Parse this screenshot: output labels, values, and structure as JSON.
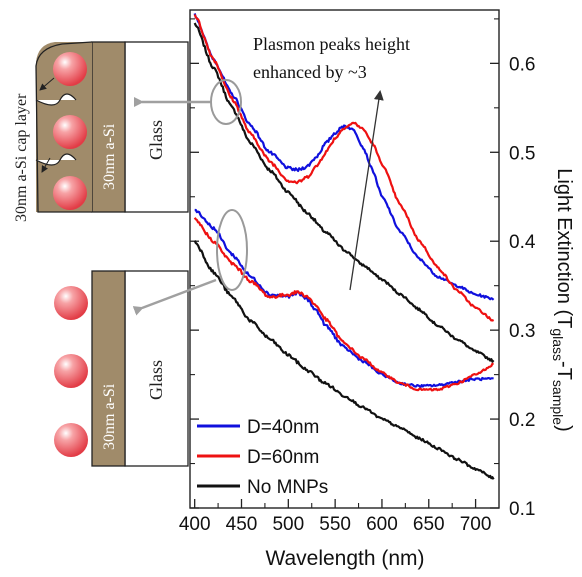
{
  "chart_data": {
    "type": "line",
    "xlabel": "Wavelength (nm)",
    "ylabel_main": "Light Extinction (T",
    "ylabel_sub1": "glass",
    "ylabel_mid": "-T",
    "ylabel_sub2": "sample",
    "ylabel_end": ")",
    "xlim": [
      395,
      725
    ],
    "ylim": [
      0.1,
      0.66
    ],
    "x_ticks": [
      400,
      450,
      500,
      550,
      600,
      650,
      700
    ],
    "y_ticks": [
      0.1,
      0.2,
      0.3,
      0.4,
      0.5,
      0.6
    ],
    "y_tick_labels": [
      "0.1",
      "0.2",
      "0.3",
      "0.4",
      "0.5",
      "0.6"
    ],
    "annotation": {
      "line1": "Plasmon peaks height",
      "line2": "enhanced by ~3"
    },
    "legend": {
      "placement": "bottom-left",
      "entries": [
        {
          "label": "D=40nm",
          "color": "#1010dd"
        },
        {
          "label": "D=60nm",
          "color": "#ee1111"
        },
        {
          "label": "No MNPs",
          "color": "#111111"
        }
      ]
    },
    "series": [
      {
        "group": "capped",
        "color": "#1010dd",
        "x": [
          400,
          420,
          440,
          460,
          480,
          500,
          510,
          520,
          530,
          540,
          550,
          560,
          570,
          580,
          590,
          600,
          620,
          640,
          660,
          680,
          700,
          720
        ],
        "y": [
          0.655,
          0.605,
          0.565,
          0.53,
          0.5,
          0.482,
          0.48,
          0.484,
          0.495,
          0.51,
          0.522,
          0.53,
          0.525,
          0.505,
          0.48,
          0.45,
          0.41,
          0.38,
          0.36,
          0.35,
          0.34,
          0.335
        ]
      },
      {
        "group": "capped",
        "color": "#ee1111",
        "x": [
          400,
          420,
          440,
          460,
          480,
          500,
          510,
          520,
          530,
          540,
          550,
          560,
          570,
          580,
          590,
          600,
          620,
          640,
          660,
          680,
          700,
          720
        ],
        "y": [
          0.655,
          0.605,
          0.56,
          0.52,
          0.49,
          0.468,
          0.466,
          0.472,
          0.484,
          0.5,
          0.516,
          0.528,
          0.533,
          0.526,
          0.51,
          0.487,
          0.44,
          0.4,
          0.37,
          0.345,
          0.325,
          0.31
        ]
      },
      {
        "group": "capped",
        "color": "#111111",
        "x": [
          400,
          420,
          440,
          460,
          480,
          500,
          520,
          540,
          560,
          580,
          600,
          620,
          640,
          660,
          680,
          700,
          720
        ],
        "y": [
          0.645,
          0.595,
          0.55,
          0.51,
          0.48,
          0.455,
          0.432,
          0.41,
          0.39,
          0.373,
          0.357,
          0.34,
          0.323,
          0.305,
          0.29,
          0.276,
          0.265
        ]
      },
      {
        "group": "uncapped",
        "color": "#1010dd",
        "x": [
          400,
          420,
          440,
          460,
          480,
          500,
          510,
          520,
          530,
          540,
          560,
          580,
          600,
          620,
          640,
          660,
          680,
          700,
          720
        ],
        "y": [
          0.436,
          0.415,
          0.385,
          0.36,
          0.34,
          0.338,
          0.342,
          0.335,
          0.322,
          0.305,
          0.28,
          0.265,
          0.25,
          0.24,
          0.237,
          0.238,
          0.242,
          0.245,
          0.245
        ]
      },
      {
        "group": "uncapped",
        "color": "#ee1111",
        "x": [
          400,
          420,
          440,
          460,
          480,
          500,
          510,
          520,
          530,
          540,
          560,
          580,
          600,
          620,
          640,
          660,
          680,
          700,
          720
        ],
        "y": [
          0.425,
          0.4,
          0.375,
          0.355,
          0.337,
          0.34,
          0.343,
          0.338,
          0.327,
          0.312,
          0.285,
          0.268,
          0.252,
          0.24,
          0.233,
          0.233,
          0.24,
          0.25,
          0.262
        ]
      },
      {
        "group": "uncapped",
        "color": "#111111",
        "x": [
          400,
          420,
          440,
          460,
          480,
          500,
          520,
          540,
          560,
          580,
          600,
          620,
          640,
          660,
          680,
          700,
          720
        ],
        "y": [
          0.4,
          0.365,
          0.337,
          0.31,
          0.29,
          0.272,
          0.255,
          0.24,
          0.226,
          0.213,
          0.2,
          0.19,
          0.178,
          0.167,
          0.155,
          0.144,
          0.133
        ]
      }
    ]
  },
  "schematic": {
    "cap_layer_label": "30nm a-Si cap layer",
    "top_film_label": "30nm a-Si",
    "top_glass_label": "Glass",
    "bottom_film_label": "30nm a-Si",
    "bottom_glass_label": "Glass"
  },
  "colors": {
    "si_film": "#a08b6a",
    "particle": "#ee5c62",
    "arrow": "#a0a0a0"
  }
}
